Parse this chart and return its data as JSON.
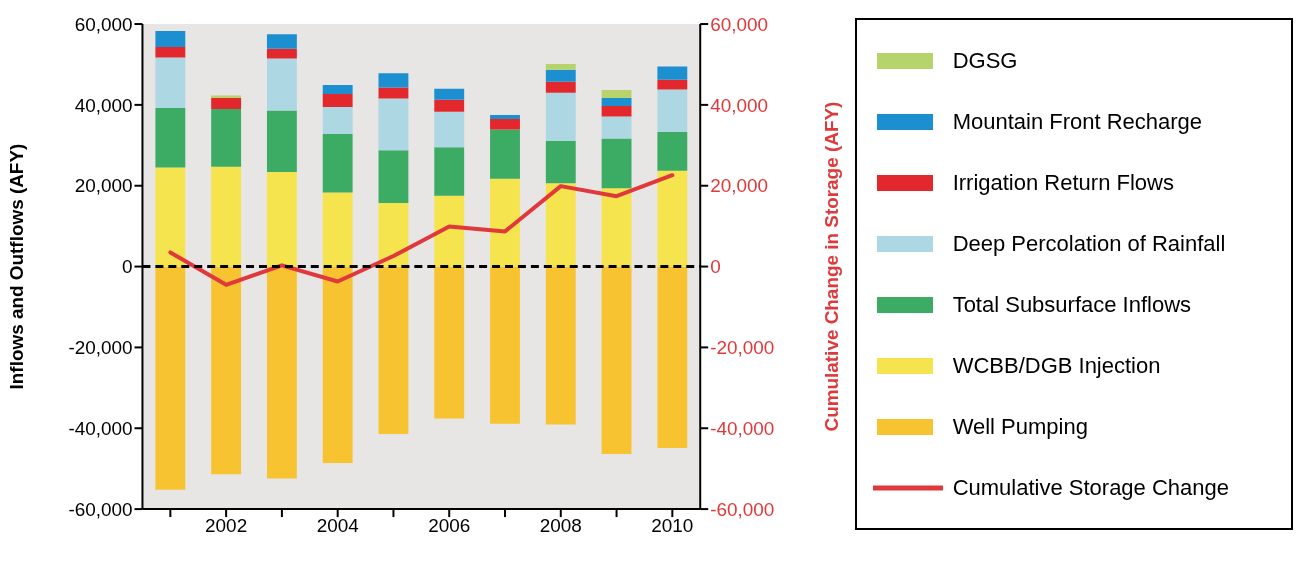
{
  "chart_data": {
    "type": "bar",
    "stacked": true,
    "categories": [
      null,
      "2002",
      null,
      "2004",
      null,
      "2006",
      null,
      "2008",
      null,
      "2010"
    ],
    "ylabel": "Inflows and Outflows (AFY)",
    "y2label": "Cumulative Change in Storage (AFY)",
    "ylim": [
      -60000,
      60000
    ],
    "yticks": [
      {
        "value": -60000,
        "label": "-60,000"
      },
      {
        "value": -40000,
        "label": "-40,000"
      },
      {
        "value": -20000,
        "label": "-20,000"
      },
      0,
      {
        "value": 20000,
        "label": "20,000"
      },
      {
        "value": 40000,
        "label": "40,000"
      },
      {
        "value": 60000,
        "label": "60,000"
      }
    ],
    "y2lim": [
      -60000,
      60000
    ],
    "y2ticks": [
      {
        "value": -60000,
        "label": "-60,000"
      },
      {
        "value": -40000,
        "label": "-40,000"
      },
      {
        "value": -20000,
        "label": "-20,000"
      },
      0,
      {
        "value": 20000,
        "label": "20,000"
      },
      {
        "value": 40000,
        "label": "40,000"
      },
      {
        "value": 60000,
        "label": "60,000"
      }
    ],
    "series": [
      {
        "name": "Well Pumping",
        "color": "#f8c330",
        "values": [
          -55200,
          -51400,
          -52400,
          -48600,
          -41400,
          -37600,
          -38900,
          -39100,
          -46400,
          -44900
        ]
      },
      {
        "name": "WCBB/DGB Injection",
        "color": "#f6e44e",
        "values": [
          24500,
          24700,
          23400,
          18300,
          15700,
          17500,
          21700,
          20600,
          19400,
          23700
        ]
      },
      {
        "name": "Total Subsurface Inflows",
        "color": "#3cab63",
        "values": [
          14700,
          14300,
          15200,
          14500,
          13100,
          12000,
          12200,
          10500,
          12300,
          9600
        ]
      },
      {
        "name": "Deep Percolation of Rainfall",
        "color": "#acd7e3",
        "values": [
          12500,
          0,
          12900,
          6700,
          12800,
          8800,
          0,
          11900,
          5400,
          10500
        ]
      },
      {
        "name": "Irrigation Return Flows",
        "color": "#e3282d",
        "values": [
          2600,
          2700,
          2400,
          3200,
          2700,
          3000,
          2600,
          2700,
          2600,
          2400
        ]
      },
      {
        "name": "Mountain Front Recharge",
        "color": "#1b8fd0",
        "values": [
          4000,
          0,
          3600,
          2200,
          3500,
          2700,
          1000,
          3000,
          2000,
          3300
        ]
      },
      {
        "name": "DGSG",
        "color": "#b6d36c",
        "values": [
          0,
          600,
          0,
          0,
          0,
          0,
          0,
          1400,
          2000,
          0
        ]
      },
      {
        "name": "Cumulative Storage Change",
        "type": "line",
        "axis": "y2",
        "color": "#e0393b",
        "values": [
          3500,
          -4500,
          300,
          -3700,
          2600,
          9900,
          8700,
          19900,
          17400,
          22600
        ]
      }
    ],
    "ref_lines": [
      {
        "axis": "y",
        "value": 0,
        "color": "#000000",
        "line_style": "dashed"
      }
    ],
    "legend": "right",
    "marker": "none",
    "line_style": "solid"
  }
}
